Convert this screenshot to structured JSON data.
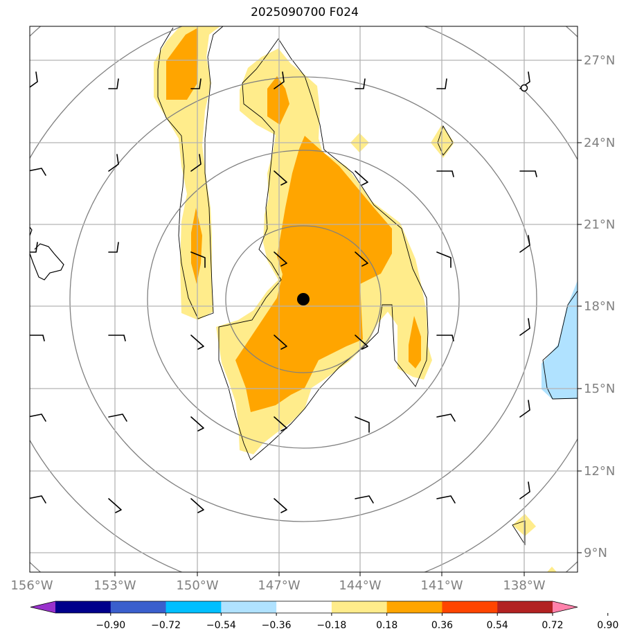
{
  "title": "2025090700 F024",
  "map": {
    "lon_labels": [
      "156°W",
      "153°W",
      "150°W",
      "147°W",
      "144°W",
      "141°W",
      "138°W"
    ],
    "lat_labels": [
      "27°N",
      "24°N",
      "21°N",
      "18°N",
      "15°N",
      "12°N",
      "9°N"
    ],
    "center_marker": "storm-center"
  },
  "colorbar": {
    "labels": [
      "−0.90",
      "−0.72",
      "−0.54",
      "−0.36",
      "−0.18",
      "0.18",
      "0.36",
      "0.54",
      "0.72",
      "0.90"
    ],
    "colors": [
      "#9932cc",
      "#00008b",
      "#3a5fcd",
      "#00bfff",
      "#b0e2ff",
      "#ffffff",
      "#ffec8b",
      "#ffa500",
      "#ff4500",
      "#b22222",
      "#ff82ab"
    ]
  },
  "colors": {
    "shade_low": "#ffec8b",
    "shade_mid": "#ffa500",
    "shade_neg": "#b0e2ff",
    "grid": "#b3b3b3",
    "rings": "#808080"
  }
}
